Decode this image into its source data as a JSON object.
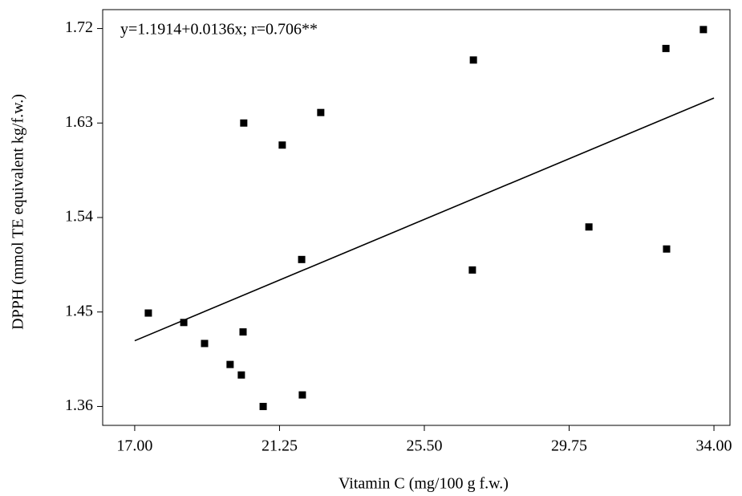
{
  "chart_data": {
    "type": "scatter",
    "annotation": "y=1.1914+0.0136x; r=0.706**",
    "x_label": "Vitamin C (mg/100 g f.w.)",
    "y_label": "DPPH (mmol TE equivalent kg/f.w.)",
    "x": [
      17.4,
      18.44,
      19.05,
      19.8,
      20.13,
      20.18,
      20.2,
      20.77,
      21.33,
      21.9,
      21.92,
      22.46,
      26.94,
      26.91,
      30.33,
      32.59,
      32.61,
      33.69
    ],
    "y": [
      1.449,
      1.44,
      1.42,
      1.4,
      1.39,
      1.431,
      1.63,
      1.36,
      1.609,
      1.5,
      1.371,
      1.64,
      1.69,
      1.49,
      1.531,
      1.701,
      1.51,
      1.719
    ],
    "color": "#000000",
    "fit": {
      "x": [
        17.0,
        34.0
      ],
      "y": [
        1.4226,
        1.6538
      ]
    },
    "xlim": [
      16.06,
      34.47
    ],
    "ylim": [
      1.342,
      1.738
    ],
    "xticks": [
      {
        "value": 17,
        "label": "17.00"
      },
      21.25,
      {
        "value": 25.5,
        "label": "25.50"
      },
      29.75,
      {
        "value": 34,
        "label": "34.00"
      }
    ],
    "yticks": [
      1.36,
      1.45,
      1.54,
      1.63,
      1.72
    ]
  }
}
